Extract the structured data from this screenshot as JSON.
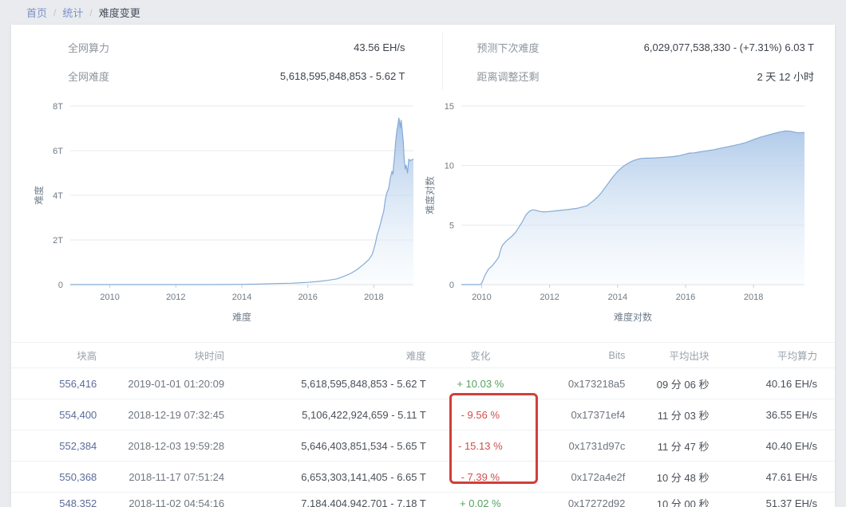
{
  "breadcrumb": {
    "separator": "/",
    "items": [
      {
        "label": "首页"
      },
      {
        "label": "统计"
      },
      {
        "label": "难度变更"
      }
    ]
  },
  "stats": {
    "left": [
      {
        "label": "全网算力",
        "value": "43.56 EH/s"
      },
      {
        "label": "全网难度",
        "value": "5,618,595,848,853 - 5.62 T"
      }
    ],
    "right": [
      {
        "label": "预测下次难度",
        "value": "6,029,077,538,330 - (+7.31%) 6.03 T"
      },
      {
        "label": "距离调整还剩",
        "value": "2 天 12 小时"
      }
    ]
  },
  "chart_data": [
    {
      "type": "area",
      "title": "难度",
      "xlabel": "难度",
      "ylabel": "难度",
      "x_range": [
        2008.8,
        2019.2
      ],
      "y_range": [
        0,
        8
      ],
      "x_ticks": [
        {
          "v": 2010,
          "label": "2010"
        },
        {
          "v": 2012,
          "label": "2012"
        },
        {
          "v": 2014,
          "label": "2014"
        },
        {
          "v": 2016,
          "label": "2016"
        },
        {
          "v": 2018,
          "label": "2018"
        }
      ],
      "y_ticks": [
        {
          "v": 0,
          "label": "0"
        },
        {
          "v": 2,
          "label": "2T"
        },
        {
          "v": 4,
          "label": "4T"
        },
        {
          "v": 6,
          "label": "6T"
        },
        {
          "v": 8,
          "label": "8T"
        }
      ],
      "grid": true,
      "legend": "none",
      "points": [
        [
          2008.8,
          0
        ],
        [
          2010,
          0
        ],
        [
          2011,
          0
        ],
        [
          2012,
          0
        ],
        [
          2013,
          0.001
        ],
        [
          2013.5,
          0.002
        ],
        [
          2014,
          0.01
        ],
        [
          2014.5,
          0.025
        ],
        [
          2015,
          0.047
        ],
        [
          2015.5,
          0.06
        ],
        [
          2016,
          0.1
        ],
        [
          2016.3,
          0.14
        ],
        [
          2016.6,
          0.19
        ],
        [
          2016.9,
          0.26
        ],
        [
          2017.1,
          0.38
        ],
        [
          2017.3,
          0.5
        ],
        [
          2017.5,
          0.68
        ],
        [
          2017.7,
          0.92
        ],
        [
          2017.85,
          1.12
        ],
        [
          2017.95,
          1.35
        ],
        [
          2018.0,
          1.59
        ],
        [
          2018.05,
          1.87
        ],
        [
          2018.1,
          2.22
        ],
        [
          2018.18,
          2.6
        ],
        [
          2018.25,
          3.01
        ],
        [
          2018.3,
          3.29
        ],
        [
          2018.35,
          3.84
        ],
        [
          2018.4,
          4.14
        ],
        [
          2018.45,
          4.31
        ],
        [
          2018.5,
          4.77
        ],
        [
          2018.55,
          5.08
        ],
        [
          2018.58,
          4.94
        ],
        [
          2018.6,
          5.36
        ],
        [
          2018.63,
          5.77
        ],
        [
          2018.66,
          6.39
        ],
        [
          2018.7,
          6.91
        ],
        [
          2018.73,
          7.18
        ],
        [
          2018.76,
          7.46
        ],
        [
          2018.78,
          7.32
        ],
        [
          2018.8,
          7.02
        ],
        [
          2018.83,
          7.36
        ],
        [
          2018.86,
          6.93
        ],
        [
          2018.89,
          6.45
        ],
        [
          2018.92,
          5.65
        ],
        [
          2018.95,
          5.18
        ],
        [
          2018.98,
          5.35
        ],
        [
          2019.02,
          5.0
        ],
        [
          2019.06,
          5.62
        ],
        [
          2019.1,
          5.55
        ],
        [
          2019.2,
          5.62
        ]
      ]
    },
    {
      "type": "area",
      "title": "难度对数",
      "xlabel": "难度对数",
      "ylabel": "难度对数",
      "x_range": [
        2009.4,
        2019.5
      ],
      "y_range": [
        0,
        15
      ],
      "x_ticks": [
        {
          "v": 2010,
          "label": "2010"
        },
        {
          "v": 2012,
          "label": "2012"
        },
        {
          "v": 2014,
          "label": "2014"
        },
        {
          "v": 2016,
          "label": "2016"
        },
        {
          "v": 2018,
          "label": "2018"
        }
      ],
      "y_ticks": [
        {
          "v": 0,
          "label": "0"
        },
        {
          "v": 5,
          "label": "5"
        },
        {
          "v": 10,
          "label": "10"
        },
        {
          "v": 15,
          "label": "15"
        }
      ],
      "grid": true,
      "legend": "none",
      "points": [
        [
          2009.4,
          0
        ],
        [
          2009.95,
          0
        ],
        [
          2010.0,
          0.1
        ],
        [
          2010.05,
          0.45
        ],
        [
          2010.1,
          0.8
        ],
        [
          2010.15,
          1.05
        ],
        [
          2010.2,
          1.3
        ],
        [
          2010.3,
          1.55
        ],
        [
          2010.4,
          1.9
        ],
        [
          2010.5,
          2.3
        ],
        [
          2010.55,
          2.85
        ],
        [
          2010.6,
          3.25
        ],
        [
          2010.7,
          3.6
        ],
        [
          2010.8,
          3.85
        ],
        [
          2010.9,
          4.1
        ],
        [
          2011.0,
          4.4
        ],
        [
          2011.1,
          4.85
        ],
        [
          2011.2,
          5.3
        ],
        [
          2011.3,
          5.85
        ],
        [
          2011.4,
          6.15
        ],
        [
          2011.5,
          6.28
        ],
        [
          2011.6,
          6.24
        ],
        [
          2011.7,
          6.15
        ],
        [
          2011.85,
          6.1
        ],
        [
          2012.0,
          6.14
        ],
        [
          2012.2,
          6.2
        ],
        [
          2012.4,
          6.26
        ],
        [
          2012.6,
          6.33
        ],
        [
          2012.8,
          6.4
        ],
        [
          2013.0,
          6.55
        ],
        [
          2013.1,
          6.62
        ],
        [
          2013.2,
          6.85
        ],
        [
          2013.3,
          7.08
        ],
        [
          2013.4,
          7.33
        ],
        [
          2013.5,
          7.65
        ],
        [
          2013.6,
          8.02
        ],
        [
          2013.7,
          8.42
        ],
        [
          2013.8,
          8.81
        ],
        [
          2013.9,
          9.18
        ],
        [
          2014.0,
          9.5
        ],
        [
          2014.1,
          9.78
        ],
        [
          2014.2,
          10.0
        ],
        [
          2014.3,
          10.18
        ],
        [
          2014.4,
          10.33
        ],
        [
          2014.5,
          10.45
        ],
        [
          2014.6,
          10.54
        ],
        [
          2014.7,
          10.6
        ],
        [
          2014.85,
          10.63
        ],
        [
          2015.0,
          10.62
        ],
        [
          2015.2,
          10.66
        ],
        [
          2015.4,
          10.7
        ],
        [
          2015.6,
          10.74
        ],
        [
          2015.8,
          10.82
        ],
        [
          2016.0,
          10.96
        ],
        [
          2016.1,
          11.04
        ],
        [
          2016.25,
          11.06
        ],
        [
          2016.4,
          11.14
        ],
        [
          2016.6,
          11.23
        ],
        [
          2016.8,
          11.31
        ],
        [
          2017.0,
          11.44
        ],
        [
          2017.2,
          11.56
        ],
        [
          2017.4,
          11.67
        ],
        [
          2017.6,
          11.8
        ],
        [
          2017.8,
          11.96
        ],
        [
          2018.0,
          12.18
        ],
        [
          2018.2,
          12.38
        ],
        [
          2018.4,
          12.54
        ],
        [
          2018.6,
          12.69
        ],
        [
          2018.8,
          12.84
        ],
        [
          2018.95,
          12.91
        ],
        [
          2019.1,
          12.88
        ],
        [
          2019.3,
          12.75
        ],
        [
          2019.5,
          12.78
        ]
      ]
    }
  ],
  "table": {
    "columns": [
      "块高",
      "块时间",
      "难度",
      "变化",
      "Bits",
      "平均出块",
      "平均算力"
    ],
    "rows": [
      {
        "height": "556,416",
        "time": "2019-01-01 01:20:09",
        "difficulty": "5,618,595,848,853 - 5.62 T",
        "change": "+ 10.03 %",
        "bits": "0x173218a5",
        "avg_block": "09 分 06 秒",
        "avg_hashrate": "40.16 EH/s"
      },
      {
        "height": "554,400",
        "time": "2018-12-19 07:32:45",
        "difficulty": "5,106,422,924,659 - 5.11 T",
        "change": "- 9.56 %",
        "bits": "0x17371ef4",
        "avg_block": "11 分 03 秒",
        "avg_hashrate": "36.55 EH/s"
      },
      {
        "height": "552,384",
        "time": "2018-12-03 19:59:28",
        "difficulty": "5,646,403,851,534 - 5.65 T",
        "change": "- 15.13 %",
        "bits": "0x1731d97c",
        "avg_block": "11 分 47 秒",
        "avg_hashrate": "40.40 EH/s"
      },
      {
        "height": "550,368",
        "time": "2018-11-17 07:51:24",
        "difficulty": "6,653,303,141,405 - 6.65 T",
        "change": "- 7.39 %",
        "bits": "0x172a4e2f",
        "avg_block": "10 分 48 秒",
        "avg_hashrate": "47.61 EH/s"
      },
      {
        "height": "548,352",
        "time": "2018-11-02 04:54:16",
        "difficulty": "7,184,404,942,701 - 7.18 T",
        "change": "+ 0.02 %",
        "bits": "0x17272d92",
        "avg_block": "10 分 00 秒",
        "avg_hashrate": "51.37 EH/s"
      }
    ]
  },
  "colors": {
    "positive_green": "#55a25f",
    "negative_red": "#cf4e4b",
    "annotation_red": "#d23f38",
    "link_blue": "#5b6c99",
    "breadcrumb_blue": "#7b90ca",
    "chart_line": "#85abd7",
    "chart_fill_top": "#96b9e2",
    "gridline": "#e7e9eb"
  }
}
